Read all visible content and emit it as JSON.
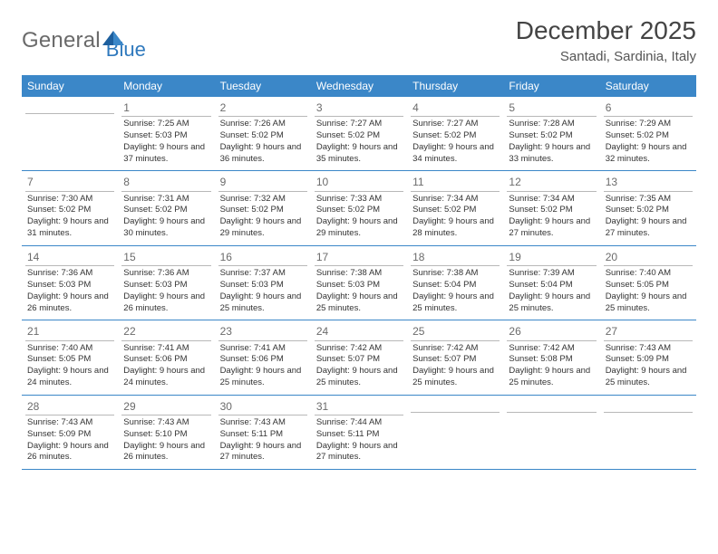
{
  "logo": {
    "textA": "General",
    "textB": "Blue",
    "color_gray": "#6a6a6a",
    "color_blue": "#2f79bd"
  },
  "header": {
    "month": "December 2025",
    "location": "Santadi, Sardinia, Italy"
  },
  "theme": {
    "header_bg": "#3b87c8",
    "header_text": "#ffffff",
    "cell_border": "#b8b8b8",
    "row_divider": "#3b87c8",
    "text_color": "#333333",
    "daynum_color": "#6b6b6b"
  },
  "weekdays": [
    "Sunday",
    "Monday",
    "Tuesday",
    "Wednesday",
    "Thursday",
    "Friday",
    "Saturday"
  ],
  "grid": [
    [
      null,
      {
        "d": "1",
        "sr": "7:25 AM",
        "ss": "5:03 PM",
        "dl": "9 hours and 37 minutes."
      },
      {
        "d": "2",
        "sr": "7:26 AM",
        "ss": "5:02 PM",
        "dl": "9 hours and 36 minutes."
      },
      {
        "d": "3",
        "sr": "7:27 AM",
        "ss": "5:02 PM",
        "dl": "9 hours and 35 minutes."
      },
      {
        "d": "4",
        "sr": "7:27 AM",
        "ss": "5:02 PM",
        "dl": "9 hours and 34 minutes."
      },
      {
        "d": "5",
        "sr": "7:28 AM",
        "ss": "5:02 PM",
        "dl": "9 hours and 33 minutes."
      },
      {
        "d": "6",
        "sr": "7:29 AM",
        "ss": "5:02 PM",
        "dl": "9 hours and 32 minutes."
      }
    ],
    [
      {
        "d": "7",
        "sr": "7:30 AM",
        "ss": "5:02 PM",
        "dl": "9 hours and 31 minutes."
      },
      {
        "d": "8",
        "sr": "7:31 AM",
        "ss": "5:02 PM",
        "dl": "9 hours and 30 minutes."
      },
      {
        "d": "9",
        "sr": "7:32 AM",
        "ss": "5:02 PM",
        "dl": "9 hours and 29 minutes."
      },
      {
        "d": "10",
        "sr": "7:33 AM",
        "ss": "5:02 PM",
        "dl": "9 hours and 29 minutes."
      },
      {
        "d": "11",
        "sr": "7:34 AM",
        "ss": "5:02 PM",
        "dl": "9 hours and 28 minutes."
      },
      {
        "d": "12",
        "sr": "7:34 AM",
        "ss": "5:02 PM",
        "dl": "9 hours and 27 minutes."
      },
      {
        "d": "13",
        "sr": "7:35 AM",
        "ss": "5:02 PM",
        "dl": "9 hours and 27 minutes."
      }
    ],
    [
      {
        "d": "14",
        "sr": "7:36 AM",
        "ss": "5:03 PM",
        "dl": "9 hours and 26 minutes."
      },
      {
        "d": "15",
        "sr": "7:36 AM",
        "ss": "5:03 PM",
        "dl": "9 hours and 26 minutes."
      },
      {
        "d": "16",
        "sr": "7:37 AM",
        "ss": "5:03 PM",
        "dl": "9 hours and 25 minutes."
      },
      {
        "d": "17",
        "sr": "7:38 AM",
        "ss": "5:03 PM",
        "dl": "9 hours and 25 minutes."
      },
      {
        "d": "18",
        "sr": "7:38 AM",
        "ss": "5:04 PM",
        "dl": "9 hours and 25 minutes."
      },
      {
        "d": "19",
        "sr": "7:39 AM",
        "ss": "5:04 PM",
        "dl": "9 hours and 25 minutes."
      },
      {
        "d": "20",
        "sr": "7:40 AM",
        "ss": "5:05 PM",
        "dl": "9 hours and 25 minutes."
      }
    ],
    [
      {
        "d": "21",
        "sr": "7:40 AM",
        "ss": "5:05 PM",
        "dl": "9 hours and 24 minutes."
      },
      {
        "d": "22",
        "sr": "7:41 AM",
        "ss": "5:06 PM",
        "dl": "9 hours and 24 minutes."
      },
      {
        "d": "23",
        "sr": "7:41 AM",
        "ss": "5:06 PM",
        "dl": "9 hours and 25 minutes."
      },
      {
        "d": "24",
        "sr": "7:42 AM",
        "ss": "5:07 PM",
        "dl": "9 hours and 25 minutes."
      },
      {
        "d": "25",
        "sr": "7:42 AM",
        "ss": "5:07 PM",
        "dl": "9 hours and 25 minutes."
      },
      {
        "d": "26",
        "sr": "7:42 AM",
        "ss": "5:08 PM",
        "dl": "9 hours and 25 minutes."
      },
      {
        "d": "27",
        "sr": "7:43 AM",
        "ss": "5:09 PM",
        "dl": "9 hours and 25 minutes."
      }
    ],
    [
      {
        "d": "28",
        "sr": "7:43 AM",
        "ss": "5:09 PM",
        "dl": "9 hours and 26 minutes."
      },
      {
        "d": "29",
        "sr": "7:43 AM",
        "ss": "5:10 PM",
        "dl": "9 hours and 26 minutes."
      },
      {
        "d": "30",
        "sr": "7:43 AM",
        "ss": "5:11 PM",
        "dl": "9 hours and 27 minutes."
      },
      {
        "d": "31",
        "sr": "7:44 AM",
        "ss": "5:11 PM",
        "dl": "9 hours and 27 minutes."
      },
      null,
      null,
      null
    ]
  ],
  "labels": {
    "sunrise": "Sunrise:",
    "sunset": "Sunset:",
    "daylight": "Daylight:"
  }
}
